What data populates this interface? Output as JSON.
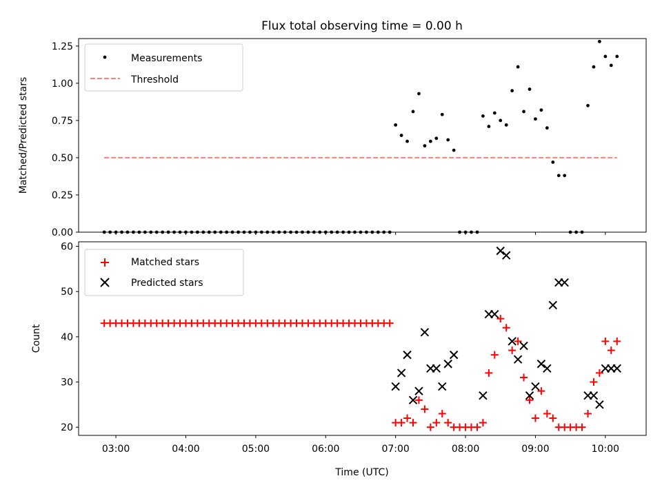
{
  "chart_data": [
    {
      "type": "scatter",
      "title": "Flux total observing time = 0.00 h",
      "ylabel": "Matched/Predicted stars",
      "xlabel": "",
      "xlim": [
        "02:28",
        "10:35"
      ],
      "ylim": [
        0,
        1.3
      ],
      "yticks": [
        "0.00",
        "0.25",
        "0.50",
        "0.75",
        "1.00",
        "1.25"
      ],
      "ytick_values": [
        0,
        0.25,
        0.5,
        0.75,
        1.0,
        1.25
      ],
      "xtick_values": [
        "03:00",
        "04:00",
        "05:00",
        "06:00",
        "07:00",
        "08:00",
        "09:00",
        "10:00"
      ],
      "legend": {
        "placement": "top-left",
        "entries": [
          "Measurements",
          "Threshold"
        ]
      },
      "grid": false,
      "series": [
        {
          "name": "Measurements",
          "color": "#000000",
          "marker": "dot",
          "points": [
            [
              "02:50",
              0
            ],
            [
              "02:55",
              0
            ],
            [
              "03:00",
              0
            ],
            [
              "03:05",
              0
            ],
            [
              "03:10",
              0
            ],
            [
              "03:15",
              0
            ],
            [
              "03:20",
              0
            ],
            [
              "03:25",
              0
            ],
            [
              "03:30",
              0
            ],
            [
              "03:35",
              0
            ],
            [
              "03:40",
              0
            ],
            [
              "03:45",
              0
            ],
            [
              "03:50",
              0
            ],
            [
              "03:55",
              0
            ],
            [
              "04:00",
              0
            ],
            [
              "04:05",
              0
            ],
            [
              "04:10",
              0
            ],
            [
              "04:15",
              0
            ],
            [
              "04:20",
              0
            ],
            [
              "04:25",
              0
            ],
            [
              "04:30",
              0
            ],
            [
              "04:35",
              0
            ],
            [
              "04:40",
              0
            ],
            [
              "04:45",
              0
            ],
            [
              "04:50",
              0
            ],
            [
              "04:55",
              0
            ],
            [
              "05:00",
              0
            ],
            [
              "05:05",
              0
            ],
            [
              "05:10",
              0
            ],
            [
              "05:15",
              0
            ],
            [
              "05:20",
              0
            ],
            [
              "05:25",
              0
            ],
            [
              "05:30",
              0
            ],
            [
              "05:35",
              0
            ],
            [
              "05:40",
              0
            ],
            [
              "05:45",
              0
            ],
            [
              "05:50",
              0
            ],
            [
              "05:55",
              0
            ],
            [
              "06:00",
              0
            ],
            [
              "06:05",
              0
            ],
            [
              "06:10",
              0
            ],
            [
              "06:15",
              0
            ],
            [
              "06:20",
              0
            ],
            [
              "06:25",
              0
            ],
            [
              "06:30",
              0
            ],
            [
              "06:35",
              0
            ],
            [
              "06:40",
              0
            ],
            [
              "06:45",
              0
            ],
            [
              "06:50",
              0
            ],
            [
              "06:55",
              0
            ],
            [
              "07:00",
              0.72
            ],
            [
              "07:05",
              0.65
            ],
            [
              "07:10",
              0.61
            ],
            [
              "07:15",
              0.81
            ],
            [
              "07:20",
              0.93
            ],
            [
              "07:25",
              0.58
            ],
            [
              "07:30",
              0.61
            ],
            [
              "07:35",
              0.63
            ],
            [
              "07:40",
              0.79
            ],
            [
              "07:45",
              0.62
            ],
            [
              "07:50",
              0.55
            ],
            [
              "07:55",
              0
            ],
            [
              "08:00",
              0
            ],
            [
              "08:05",
              0
            ],
            [
              "08:10",
              0
            ],
            [
              "08:15",
              0.78
            ],
            [
              "08:20",
              0.71
            ],
            [
              "08:25",
              0.8
            ],
            [
              "08:30",
              0.75
            ],
            [
              "08:35",
              0.72
            ],
            [
              "08:40",
              0.95
            ],
            [
              "08:45",
              1.11
            ],
            [
              "08:50",
              0.81
            ],
            [
              "08:55",
              0.96
            ],
            [
              "09:00",
              0.76
            ],
            [
              "09:05",
              0.82
            ],
            [
              "09:10",
              0.7
            ],
            [
              "09:15",
              0.47
            ],
            [
              "09:20",
              0.38
            ],
            [
              "09:25",
              0.38
            ],
            [
              "09:30",
              0
            ],
            [
              "09:35",
              0
            ],
            [
              "09:40",
              0
            ],
            [
              "09:45",
              0.85
            ],
            [
              "09:50",
              1.11
            ],
            [
              "09:55",
              1.28
            ],
            [
              "10:00",
              1.18
            ],
            [
              "10:05",
              1.12
            ],
            [
              "10:10",
              1.18
            ]
          ]
        },
        {
          "name": "Threshold",
          "color": "#ff7f7f",
          "style": "dashed",
          "points": [
            [
              "02:50",
              0.5
            ],
            [
              "10:10",
              0.5
            ]
          ]
        }
      ]
    },
    {
      "type": "scatter",
      "title": "",
      "ylabel": "Count",
      "xlabel": "Time (UTC)",
      "xlim": [
        "02:28",
        "10:35"
      ],
      "ylim": [
        18.2,
        61
      ],
      "yticks": [
        "20",
        "30",
        "40",
        "50",
        "60"
      ],
      "ytick_values": [
        20,
        30,
        40,
        50,
        60
      ],
      "xticks": [
        "03:00",
        "04:00",
        "05:00",
        "06:00",
        "07:00",
        "08:00",
        "09:00",
        "10:00"
      ],
      "xtick_values": [
        "03:00",
        "04:00",
        "05:00",
        "06:00",
        "07:00",
        "08:00",
        "09:00",
        "10:00"
      ],
      "legend": {
        "placement": "top-left",
        "entries": [
          "Matched stars",
          "Predicted stars"
        ]
      },
      "grid": false,
      "series": [
        {
          "name": "Matched stars",
          "color": "#ff0000",
          "marker": "plus",
          "points": [
            [
              "02:50",
              43
            ],
            [
              "02:55",
              43
            ],
            [
              "03:00",
              43
            ],
            [
              "03:05",
              43
            ],
            [
              "03:10",
              43
            ],
            [
              "03:15",
              43
            ],
            [
              "03:20",
              43
            ],
            [
              "03:25",
              43
            ],
            [
              "03:30",
              43
            ],
            [
              "03:35",
              43
            ],
            [
              "03:40",
              43
            ],
            [
              "03:45",
              43
            ],
            [
              "03:50",
              43
            ],
            [
              "03:55",
              43
            ],
            [
              "04:00",
              43
            ],
            [
              "04:05",
              43
            ],
            [
              "04:10",
              43
            ],
            [
              "04:15",
              43
            ],
            [
              "04:20",
              43
            ],
            [
              "04:25",
              43
            ],
            [
              "04:30",
              43
            ],
            [
              "04:35",
              43
            ],
            [
              "04:40",
              43
            ],
            [
              "04:45",
              43
            ],
            [
              "04:50",
              43
            ],
            [
              "04:55",
              43
            ],
            [
              "05:00",
              43
            ],
            [
              "05:05",
              43
            ],
            [
              "05:10",
              43
            ],
            [
              "05:15",
              43
            ],
            [
              "05:20",
              43
            ],
            [
              "05:25",
              43
            ],
            [
              "05:30",
              43
            ],
            [
              "05:35",
              43
            ],
            [
              "05:40",
              43
            ],
            [
              "05:45",
              43
            ],
            [
              "05:50",
              43
            ],
            [
              "05:55",
              43
            ],
            [
              "06:00",
              43
            ],
            [
              "06:05",
              43
            ],
            [
              "06:10",
              43
            ],
            [
              "06:15",
              43
            ],
            [
              "06:20",
              43
            ],
            [
              "06:25",
              43
            ],
            [
              "06:30",
              43
            ],
            [
              "06:35",
              43
            ],
            [
              "06:40",
              43
            ],
            [
              "06:45",
              43
            ],
            [
              "06:50",
              43
            ],
            [
              "06:55",
              43
            ],
            [
              "07:00",
              21
            ],
            [
              "07:05",
              21
            ],
            [
              "07:10",
              22
            ],
            [
              "07:15",
              21
            ],
            [
              "07:20",
              26
            ],
            [
              "07:25",
              24
            ],
            [
              "07:30",
              20
            ],
            [
              "07:35",
              21
            ],
            [
              "07:40",
              23
            ],
            [
              "07:45",
              21
            ],
            [
              "07:50",
              20
            ],
            [
              "07:55",
              20
            ],
            [
              "08:00",
              20
            ],
            [
              "08:05",
              20
            ],
            [
              "08:10",
              20
            ],
            [
              "08:15",
              21
            ],
            [
              "08:20",
              32
            ],
            [
              "08:25",
              36
            ],
            [
              "08:30",
              44
            ],
            [
              "08:35",
              42
            ],
            [
              "08:40",
              37
            ],
            [
              "08:45",
              39
            ],
            [
              "08:50",
              31
            ],
            [
              "08:55",
              26
            ],
            [
              "09:00",
              22
            ],
            [
              "09:05",
              28
            ],
            [
              "09:10",
              23
            ],
            [
              "09:15",
              22
            ],
            [
              "09:20",
              20
            ],
            [
              "09:25",
              20
            ],
            [
              "09:30",
              20
            ],
            [
              "09:35",
              20
            ],
            [
              "09:40",
              20
            ],
            [
              "09:45",
              23
            ],
            [
              "09:50",
              30
            ],
            [
              "09:55",
              32
            ],
            [
              "10:00",
              39
            ],
            [
              "10:05",
              37
            ],
            [
              "10:10",
              39
            ]
          ]
        },
        {
          "name": "Predicted stars",
          "color": "#000000",
          "marker": "x",
          "points": [
            [
              "07:00",
              29
            ],
            [
              "07:05",
              32
            ],
            [
              "07:10",
              36
            ],
            [
              "07:15",
              26
            ],
            [
              "07:20",
              28
            ],
            [
              "07:25",
              41
            ],
            [
              "07:30",
              33
            ],
            [
              "07:35",
              33
            ],
            [
              "07:40",
              29
            ],
            [
              "07:45",
              34
            ],
            [
              "07:50",
              36
            ],
            [
              "08:15",
              27
            ],
            [
              "08:20",
              45
            ],
            [
              "08:25",
              45
            ],
            [
              "08:30",
              59
            ],
            [
              "08:35",
              58
            ],
            [
              "08:40",
              39
            ],
            [
              "08:45",
              35
            ],
            [
              "08:50",
              38
            ],
            [
              "08:55",
              27
            ],
            [
              "09:00",
              29
            ],
            [
              "09:05",
              34
            ],
            [
              "09:10",
              33
            ],
            [
              "09:15",
              47
            ],
            [
              "09:20",
              52
            ],
            [
              "09:25",
              52
            ],
            [
              "09:45",
              27
            ],
            [
              "09:50",
              27
            ],
            [
              "09:55",
              25
            ],
            [
              "10:00",
              33
            ],
            [
              "10:05",
              33
            ],
            [
              "10:10",
              33
            ]
          ]
        }
      ]
    }
  ]
}
